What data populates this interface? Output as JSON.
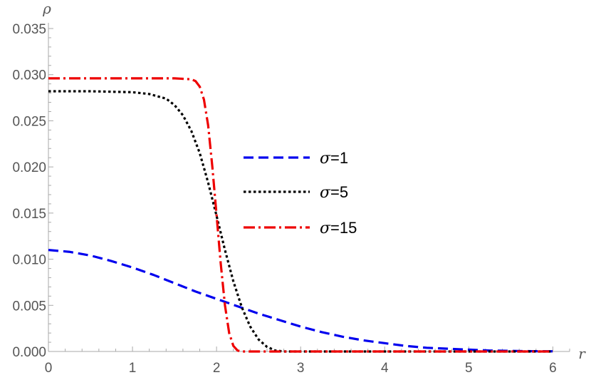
{
  "chart_data": {
    "type": "line",
    "title": "",
    "xlabel": "r",
    "ylabel": "ρ",
    "xlim": [
      0,
      6.2
    ],
    "ylim": [
      0,
      0.035
    ],
    "xticks": [
      0,
      1,
      2,
      3,
      4,
      5,
      6
    ],
    "yticks": [
      0.0,
      0.005,
      0.01,
      0.015,
      0.02,
      0.025,
      0.03,
      0.035
    ],
    "xtick_labels": [
      "0",
      "1",
      "2",
      "3",
      "4",
      "5",
      "6"
    ],
    "ytick_labels": [
      "0.000",
      "0.005",
      "0.010",
      "0.015",
      "0.020",
      "0.025",
      "0.030",
      "0.035"
    ],
    "grid": false,
    "legend_position": "center-right",
    "series": [
      {
        "name": "σ=1",
        "legend_symbol": "σ",
        "legend_value": "=1",
        "color": "#0000ee",
        "dash": "dashed",
        "x": [
          0,
          0.25,
          0.5,
          0.75,
          1.0,
          1.25,
          1.5,
          1.75,
          2.0,
          2.25,
          2.5,
          2.75,
          3.0,
          3.25,
          3.5,
          3.75,
          4.0,
          4.25,
          4.5,
          4.75,
          5.0,
          5.25,
          5.5,
          5.75,
          6.0
        ],
        "y": [
          0.011,
          0.0108,
          0.0104,
          0.0098,
          0.0091,
          0.0083,
          0.0074,
          0.0065,
          0.0057,
          0.0049,
          0.0041,
          0.0034,
          0.0027,
          0.0021,
          0.0016,
          0.0012,
          0.0009,
          0.0006,
          0.0004,
          0.0003,
          0.0002,
          0.0001,
          6e-05,
          3e-05,
          2e-05
        ]
      },
      {
        "name": "σ=5",
        "legend_symbol": "σ",
        "legend_value": "=5",
        "color": "#000000",
        "dash": "dotted",
        "x": [
          0,
          0.5,
          1.0,
          1.2,
          1.4,
          1.5,
          1.6,
          1.7,
          1.8,
          1.9,
          2.0,
          2.1,
          2.2,
          2.3,
          2.4,
          2.5,
          2.6,
          2.7,
          2.8,
          3.0,
          4.0,
          5.0,
          6.0
        ],
        "y": [
          0.0282,
          0.0282,
          0.0281,
          0.0279,
          0.0274,
          0.0267,
          0.0256,
          0.0239,
          0.0215,
          0.0183,
          0.0147,
          0.011,
          0.0076,
          0.0048,
          0.0027,
          0.0013,
          0.0005,
          0.0001,
          0.0,
          0.0,
          0.0,
          0.0,
          0.0
        ]
      },
      {
        "name": "σ=15",
        "legend_symbol": "σ",
        "legend_value": "=15",
        "color": "#ee0000",
        "dash": "dashdot",
        "x": [
          0,
          0.5,
          1.0,
          1.5,
          1.7,
          1.75,
          1.8,
          1.85,
          1.9,
          1.95,
          2.0,
          2.05,
          2.1,
          2.15,
          2.2,
          2.25,
          2.3,
          2.4,
          3.0,
          4.0,
          5.0,
          6.0
        ],
        "y": [
          0.0296,
          0.0296,
          0.0296,
          0.0296,
          0.0295,
          0.0293,
          0.0287,
          0.0273,
          0.0245,
          0.02,
          0.0148,
          0.0095,
          0.005,
          0.002,
          0.0006,
          0.0001,
          0.0,
          0.0,
          0.0,
          0.0,
          0.0,
          0.0
        ]
      }
    ]
  }
}
